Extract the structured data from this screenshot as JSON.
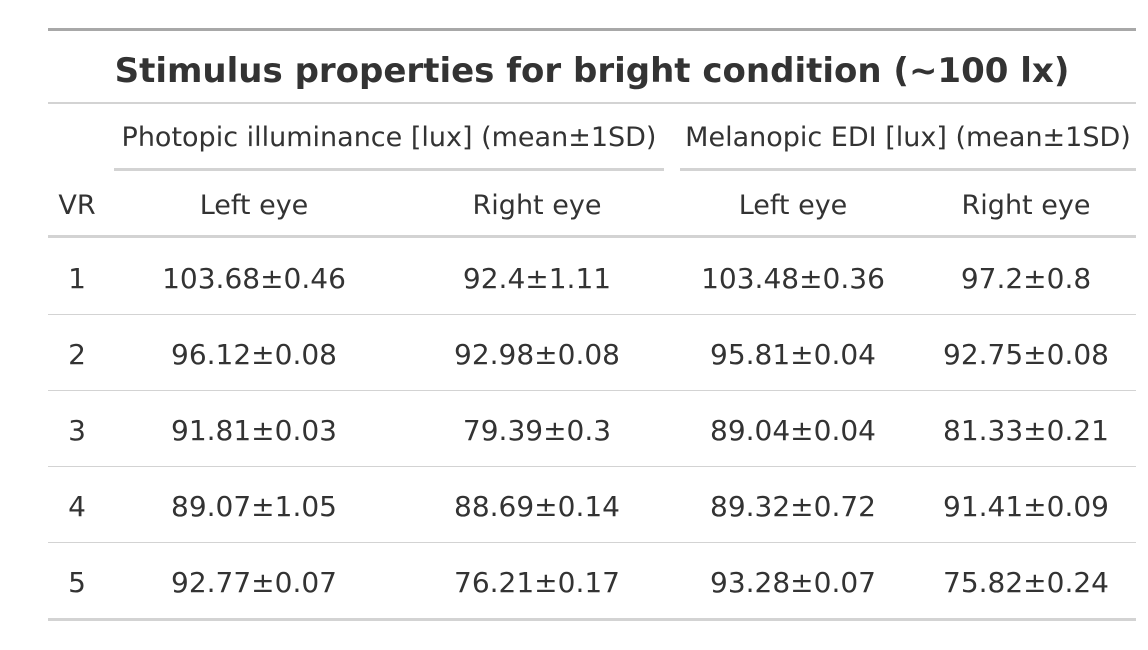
{
  "table": {
    "title": "Stimulus properties for bright condition (~100 lx)",
    "spanners": [
      "Photopic illuminance [lux] (mean±1SD)",
      "Melanopic EDI [lux] (mean±1SD)"
    ],
    "columns": [
      "VR",
      "Left eye",
      "Right eye",
      "Left eye",
      "Right eye"
    ],
    "rows": [
      [
        "1",
        "103.68±0.46",
        "92.4±1.11",
        "103.48±0.36",
        "97.2±0.8"
      ],
      [
        "2",
        "96.12±0.08",
        "92.98±0.08",
        "95.81±0.04",
        "92.75±0.08"
      ],
      [
        "3",
        "91.81±0.03",
        "79.39±0.3",
        "89.04±0.04",
        "81.33±0.21"
      ],
      [
        "4",
        "89.07±1.05",
        "88.69±0.14",
        "89.32±0.72",
        "91.41±0.09"
      ],
      [
        "5",
        "92.77±0.07",
        "76.21±0.17",
        "93.28±0.07",
        "75.82±0.24"
      ]
    ]
  }
}
